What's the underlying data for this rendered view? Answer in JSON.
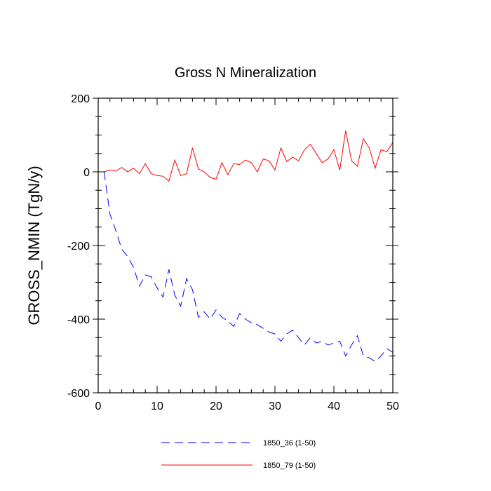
{
  "chart_data": {
    "type": "line",
    "title": "Gross N Mineralization",
    "xlabel": "",
    "ylabel": "GROSS_NMIN  (TgN/y)",
    "xlim": [
      0,
      50
    ],
    "ylim": [
      -600,
      200
    ],
    "xticks": [
      0,
      10,
      20,
      30,
      40,
      50
    ],
    "yticks": [
      200,
      0,
      -200,
      -400,
      -600
    ],
    "x": [
      1,
      2,
      3,
      4,
      5,
      6,
      7,
      8,
      9,
      10,
      11,
      12,
      13,
      14,
      15,
      16,
      17,
      18,
      19,
      20,
      21,
      22,
      23,
      24,
      25,
      26,
      27,
      28,
      29,
      30,
      31,
      32,
      33,
      34,
      35,
      36,
      37,
      38,
      39,
      40,
      41,
      42,
      43,
      44,
      45,
      46,
      47,
      48,
      49,
      50
    ],
    "series": [
      {
        "name": "1850_36 (1-50)",
        "color": "#0000ff",
        "dash": "dashed",
        "values": [
          0,
          -115,
          -160,
          -210,
          -230,
          -260,
          -310,
          -280,
          -285,
          -315,
          -340,
          -265,
          -335,
          -365,
          -290,
          -320,
          -395,
          -380,
          -400,
          -375,
          -395,
          -405,
          -420,
          -385,
          -400,
          -410,
          -415,
          -425,
          -435,
          -440,
          -460,
          -440,
          -430,
          -450,
          -470,
          -450,
          -465,
          -460,
          -470,
          -465,
          -460,
          -500,
          -470,
          -445,
          -500,
          -505,
          -515,
          -500,
          -480,
          -490
        ]
      },
      {
        "name": "1850_79 (1-50)",
        "color": "#ff0000",
        "dash": "solid",
        "values": [
          0,
          5,
          2,
          12,
          0,
          10,
          -5,
          22,
          -5,
          -10,
          -12,
          -25,
          32,
          -10,
          -5,
          65,
          8,
          0,
          -15,
          -20,
          25,
          -8,
          22,
          20,
          32,
          25,
          0,
          35,
          30,
          5,
          65,
          28,
          40,
          30,
          60,
          75,
          50,
          25,
          35,
          60,
          5,
          112,
          30,
          15,
          90,
          65,
          10,
          60,
          55,
          80
        ]
      }
    ]
  }
}
